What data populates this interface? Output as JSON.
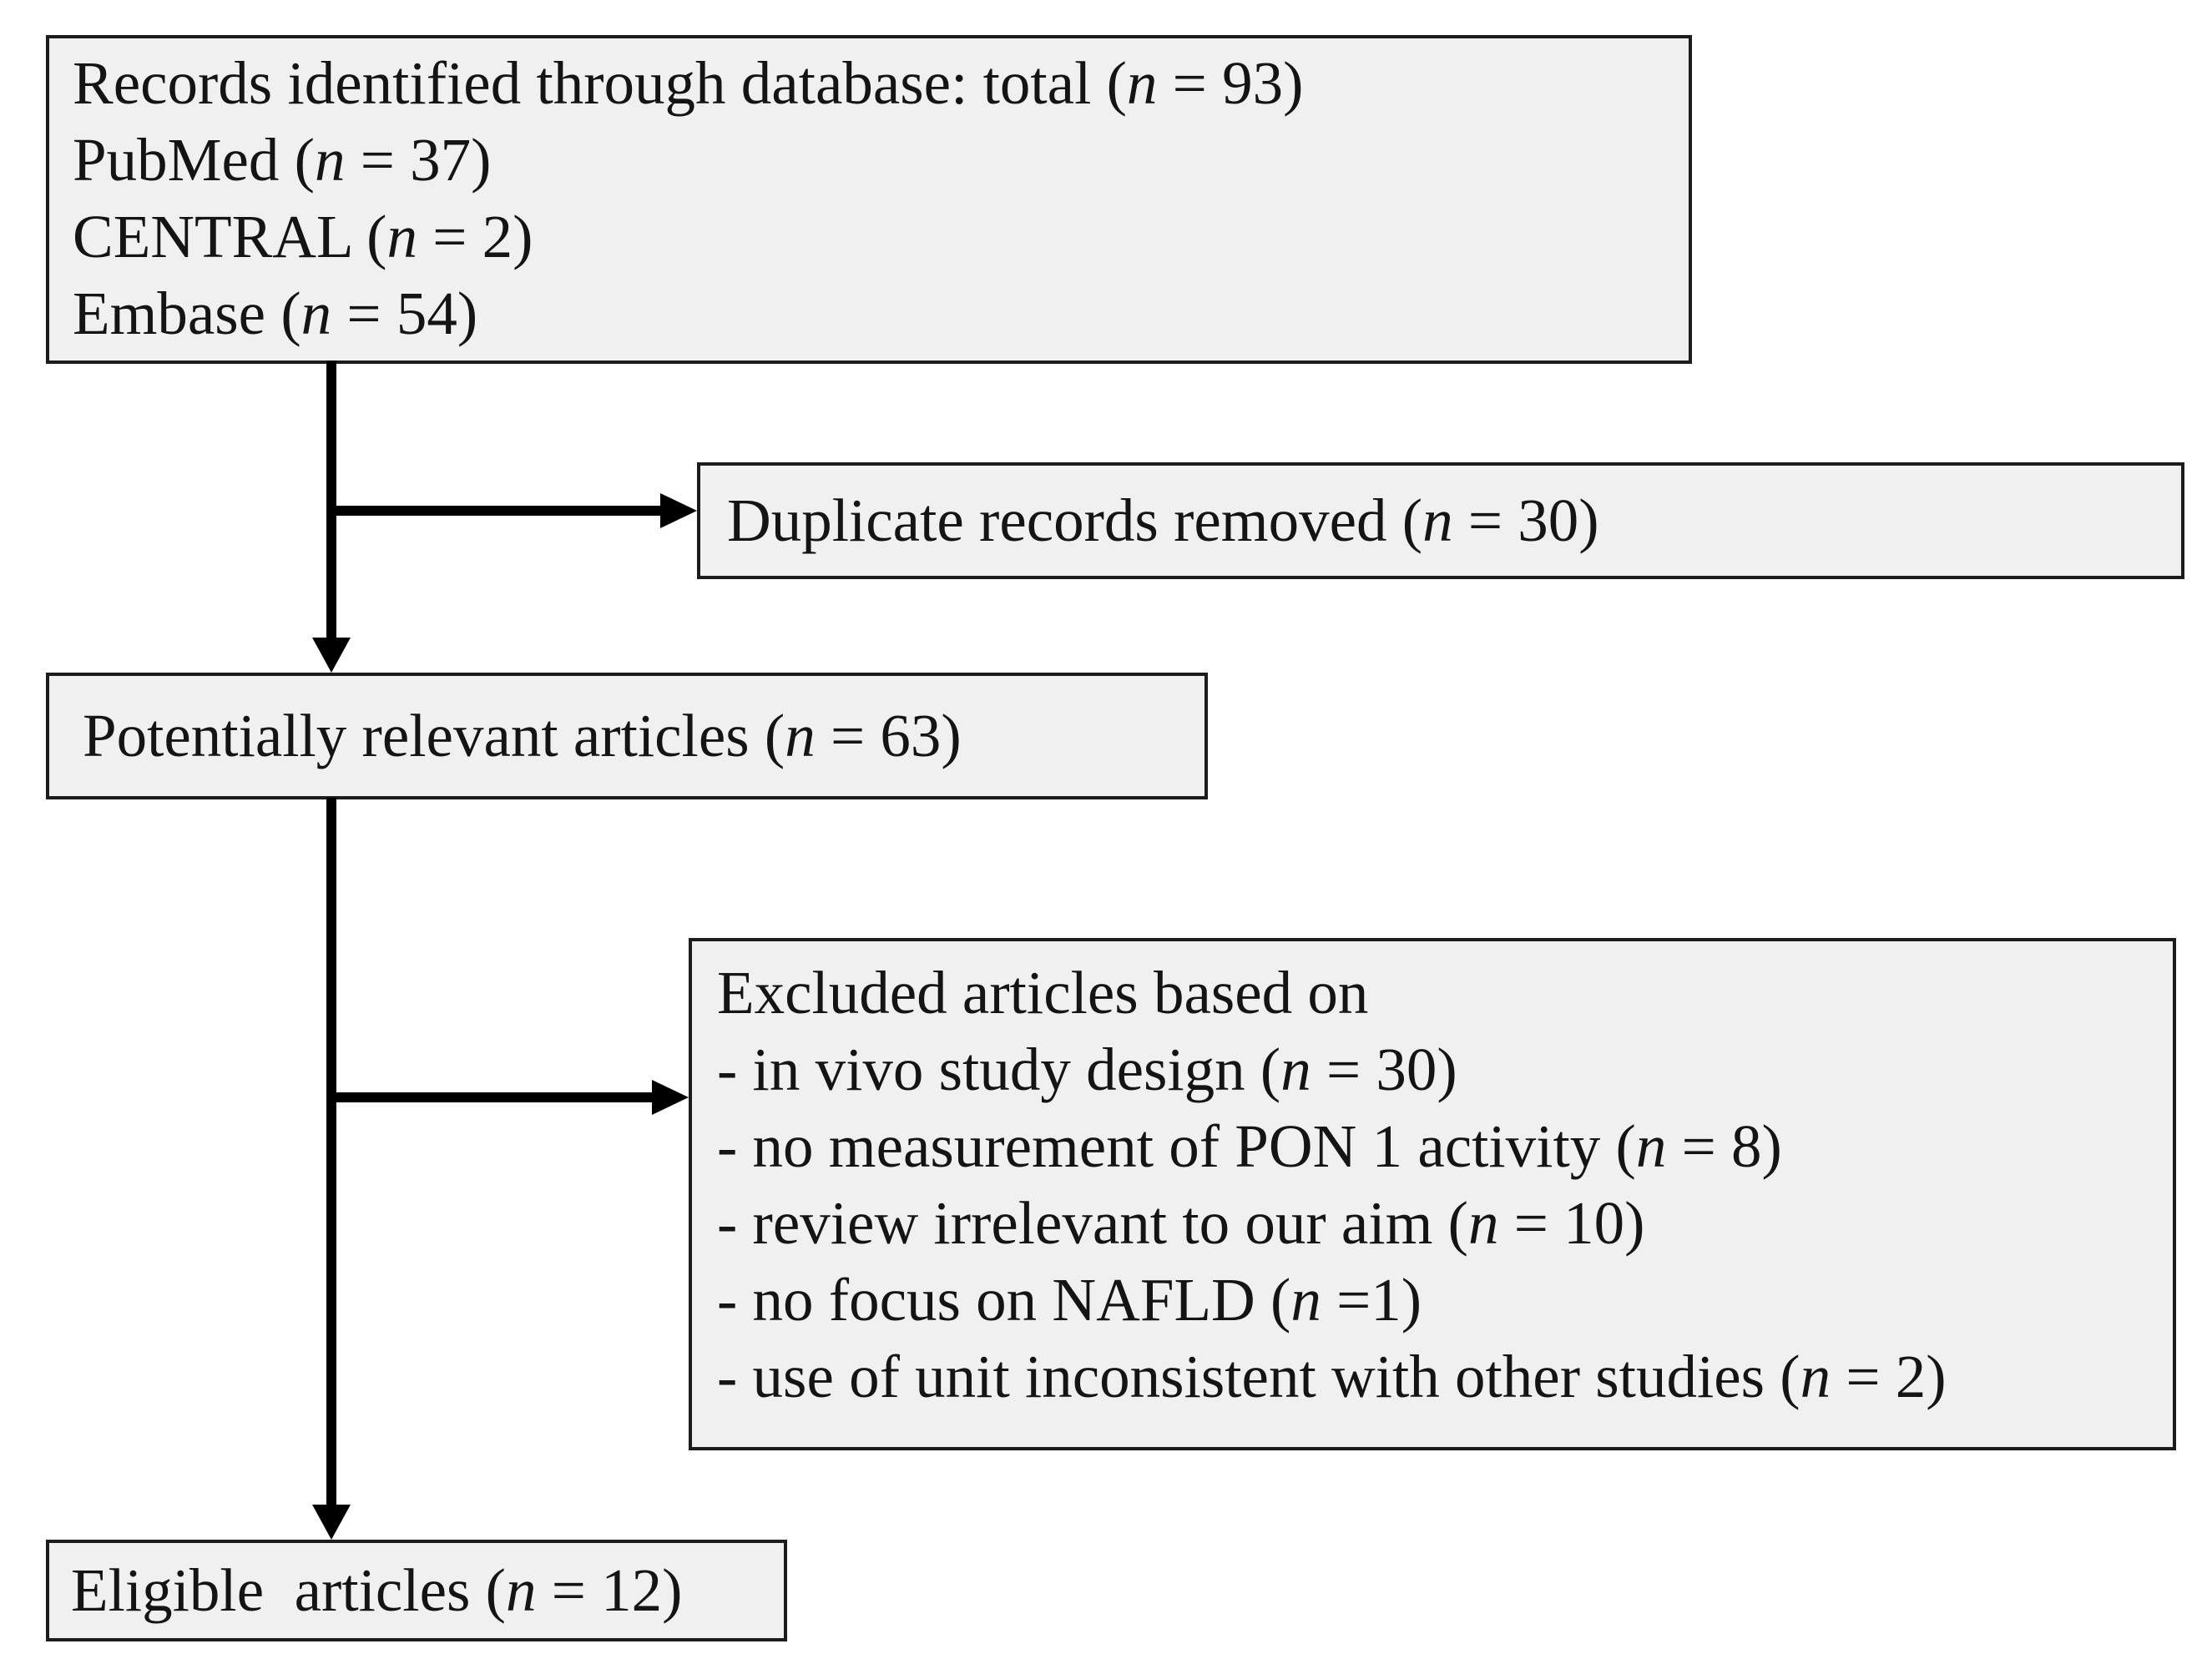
{
  "colors": {
    "background": "#ffffff",
    "box_fill": "#f0f0f0",
    "box_border": "#1c1c1c",
    "text": "#141414",
    "arrow": "#000000"
  },
  "diagram": {
    "records_box": {
      "lines": [
        [
          {
            "t": "Records identified through database: total ("
          },
          {
            "t": "n",
            "i": true
          },
          {
            "t": " = 93)"
          }
        ],
        [
          {
            "t": "PubMed ("
          },
          {
            "t": "n",
            "i": true
          },
          {
            "t": " = 37)"
          }
        ],
        [
          {
            "t": "CENTRAL ("
          },
          {
            "t": "n",
            "i": true
          },
          {
            "t": " = 2)"
          }
        ],
        [
          {
            "t": "Embase ("
          },
          {
            "t": "n",
            "i": true
          },
          {
            "t": " = 54)"
          }
        ]
      ]
    },
    "duplicates_box": {
      "lines": [
        [
          {
            "t": "Duplicate records removed ("
          },
          {
            "t": "n",
            "i": true
          },
          {
            "t": " = 30)"
          }
        ]
      ]
    },
    "potentially_box": {
      "lines": [
        [
          {
            "t": "Potentially relevant articles ("
          },
          {
            "t": "n",
            "i": true
          },
          {
            "t": " = 63)"
          }
        ]
      ]
    },
    "excluded_box": {
      "lines": [
        [
          {
            "t": "Excluded articles based on"
          }
        ],
        [
          {
            "t": "- in vivo study design ("
          },
          {
            "t": "n",
            "i": true
          },
          {
            "t": " = 30)"
          }
        ],
        [
          {
            "t": "- no measurement of PON 1 activity ("
          },
          {
            "t": "n",
            "i": true
          },
          {
            "t": " = 8)"
          }
        ],
        [
          {
            "t": "- review irrelevant to our aim ("
          },
          {
            "t": "n",
            "i": true
          },
          {
            "t": " = 10)"
          }
        ],
        [
          {
            "t": "- no focus on NAFLD ("
          },
          {
            "t": "n",
            "i": true
          },
          {
            "t": " =1)"
          }
        ],
        [
          {
            "t": "- use of unit inconsistent with other studies ("
          },
          {
            "t": "n",
            "i": true
          },
          {
            "t": " = 2)"
          }
        ]
      ]
    },
    "eligible_box": {
      "lines": [
        [
          {
            "t": "Eligible  articles ("
          },
          {
            "t": "n",
            "i": true
          },
          {
            "t": " = 12)"
          }
        ]
      ]
    }
  }
}
